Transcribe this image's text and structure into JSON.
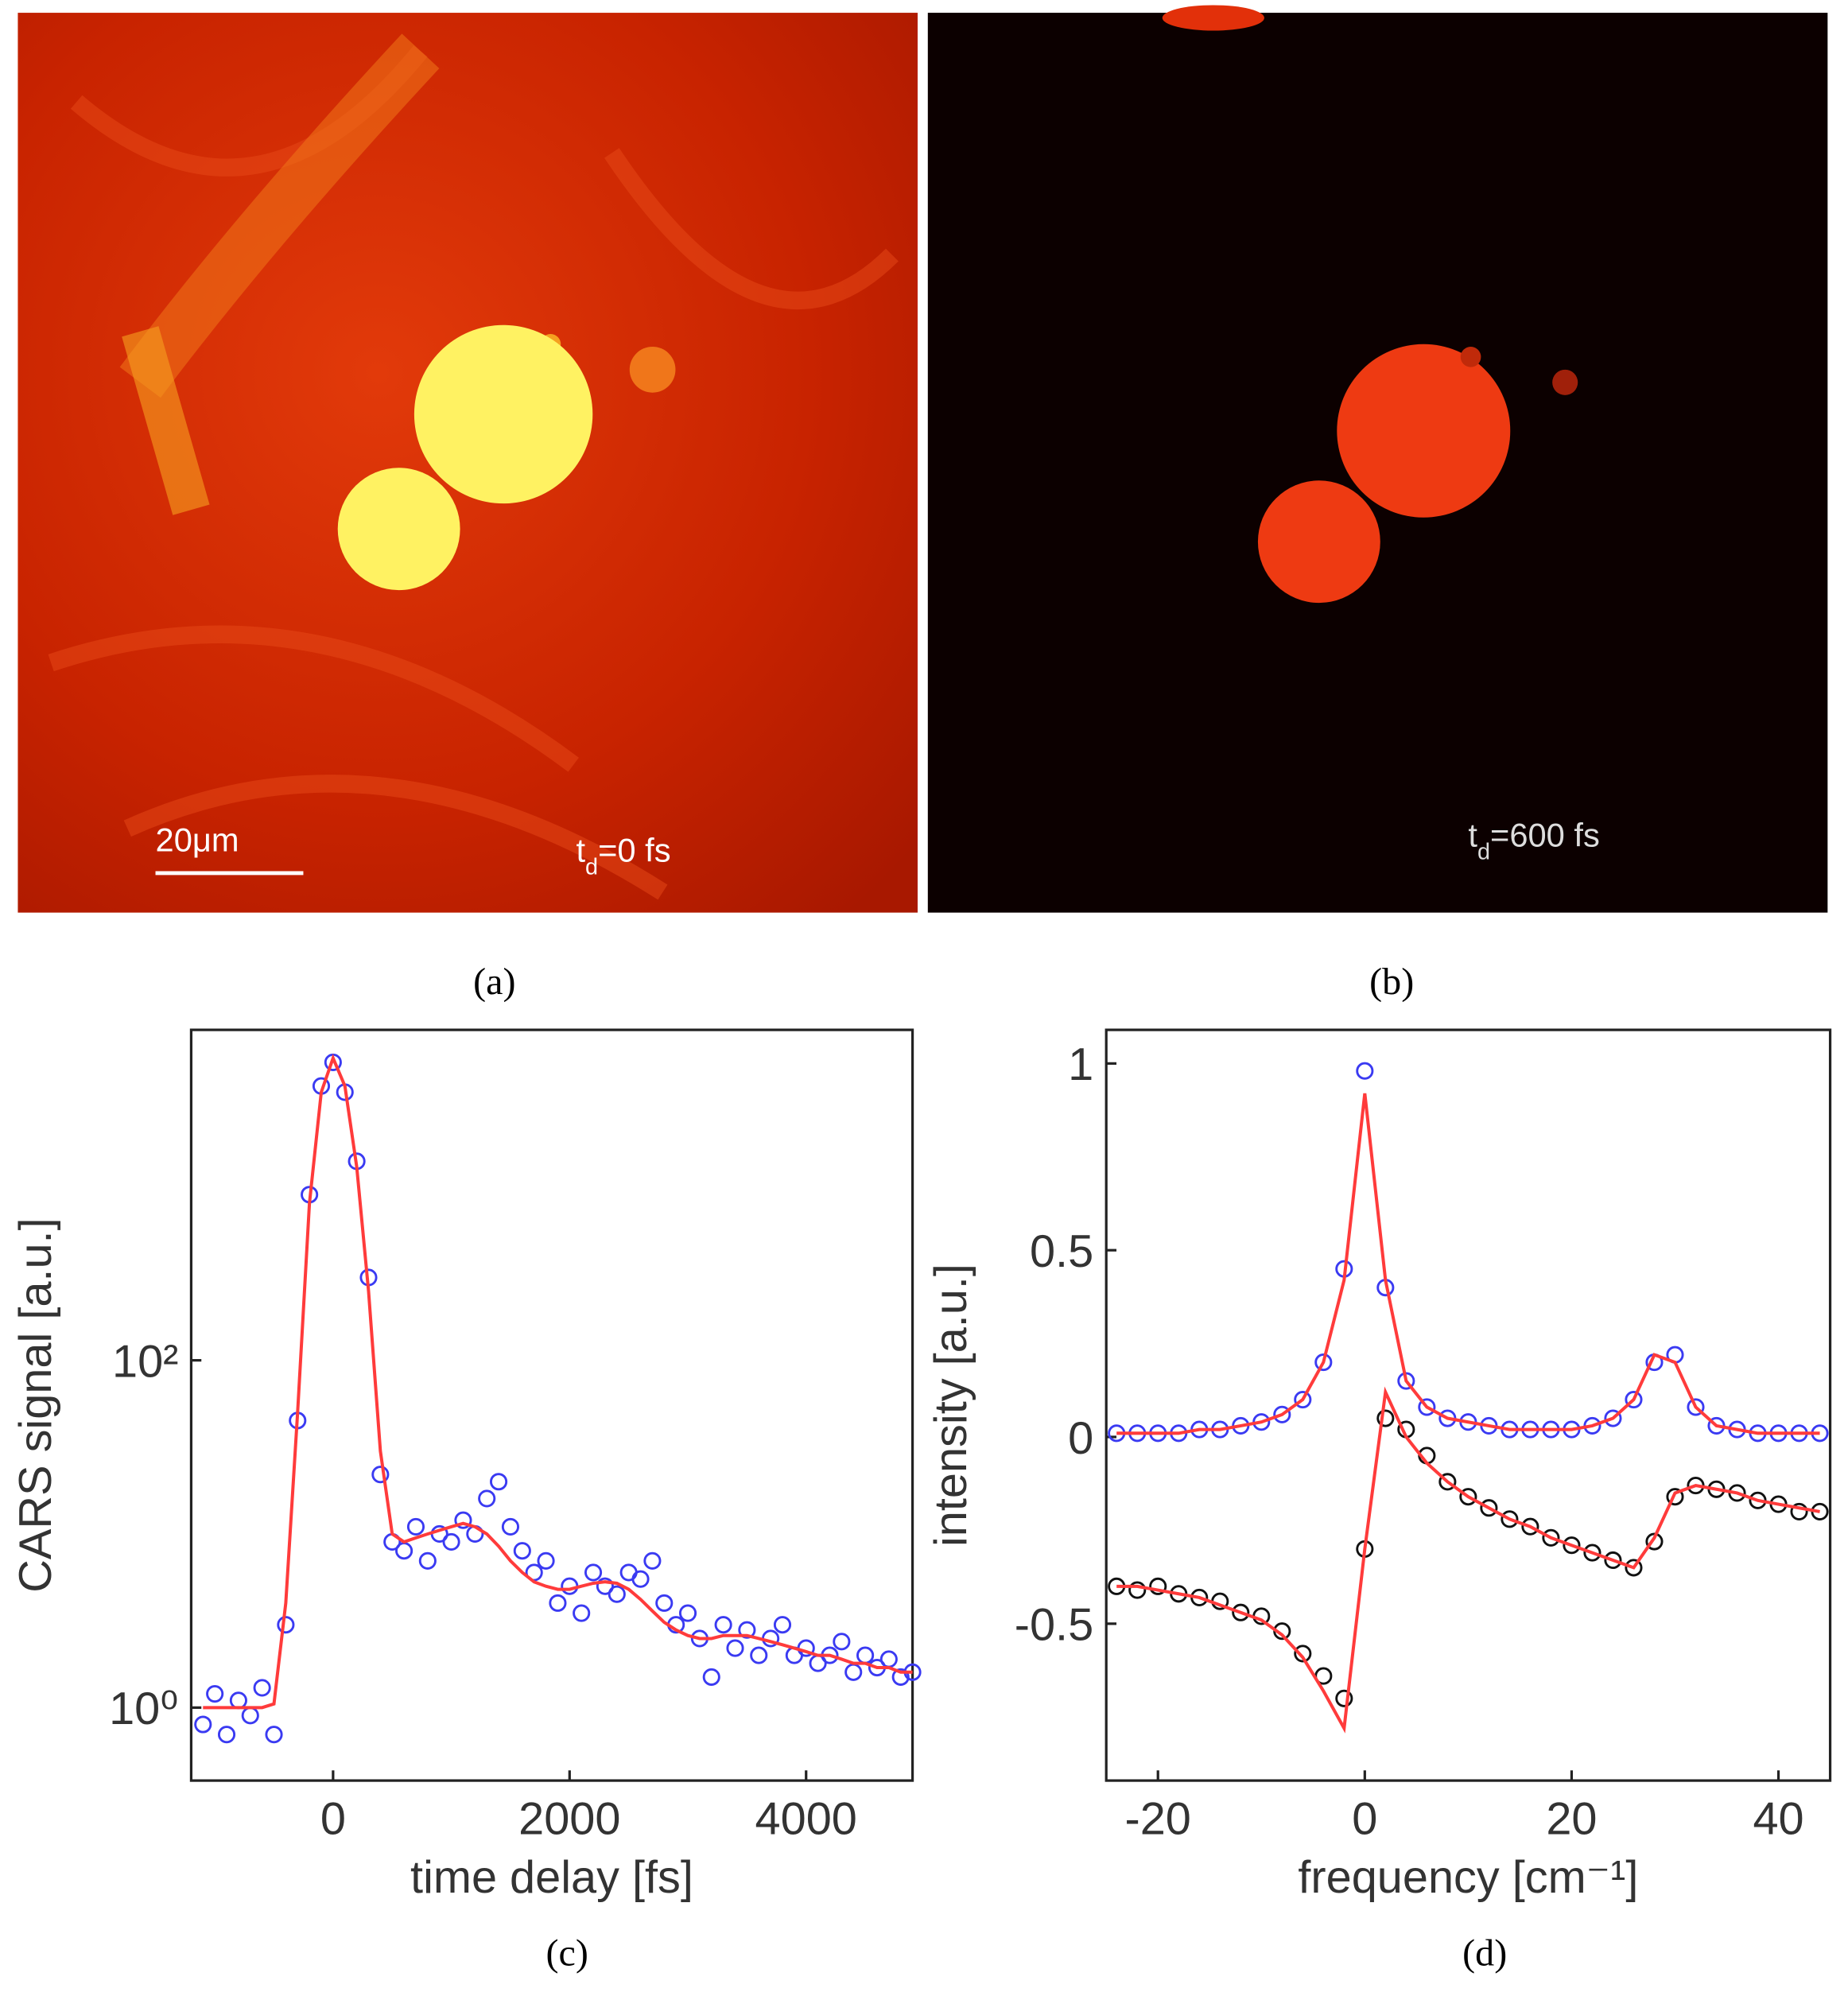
{
  "panels": [
    {
      "caption": "(a)",
      "scale_bar": "20μm",
      "delay": {
        "symbol": "t",
        "subscript": "d",
        "text": "=0 fs"
      }
    },
    {
      "caption": "(b)",
      "delay": {
        "symbol": "t",
        "subscript": "d",
        "text": "=600 fs"
      }
    }
  ],
  "chart_data": [
    {
      "type": "line",
      "caption": "(c)",
      "xlabel": "time delay [fs]",
      "ylabel": "CARS signal [a.u.]",
      "ylog": true,
      "xlim": [
        -1200,
        4900
      ],
      "ylim": [
        0.38,
        8000
      ],
      "xticks": [
        0,
        2000,
        4000
      ],
      "yticks": [
        {
          "value": 1,
          "label": "10⁰"
        },
        {
          "value": 100,
          "label": "10²"
        }
      ],
      "x": [
        -1100,
        -1000,
        -900,
        -800,
        -700,
        -600,
        -500,
        -400,
        -300,
        -200,
        -100,
        0,
        100,
        200,
        300,
        400,
        500,
        600,
        700,
        800,
        900,
        1000,
        1100,
        1200,
        1300,
        1400,
        1500,
        1600,
        1700,
        1800,
        1900,
        2000,
        2100,
        2200,
        2300,
        2400,
        2500,
        2600,
        2700,
        2800,
        2900,
        3000,
        3100,
        3200,
        3300,
        3400,
        3500,
        3600,
        3700,
        3800,
        3900,
        4000,
        4100,
        4200,
        4300,
        4400,
        4500,
        4600,
        4700,
        4800,
        4900
      ],
      "series": [
        {
          "mode": "markers",
          "color": "#3a3af2",
          "values": [
            0.8,
            1.2,
            0.7,
            1.1,
            0.9,
            1.3,
            0.7,
            3,
            45,
            900,
            3800,
            5200,
            3500,
            1400,
            300,
            22,
            9,
            8,
            11,
            7,
            10,
            9,
            12,
            10,
            16,
            20,
            11,
            8,
            6,
            7,
            4,
            5,
            3.5,
            6,
            5,
            4.5,
            6,
            5.5,
            7,
            4,
            3,
            3.5,
            2.5,
            1.5,
            3,
            2.2,
            2.8,
            2,
            2.5,
            3,
            2,
            2.2,
            1.8,
            2,
            2.4,
            1.6,
            2,
            1.7,
            1.9,
            1.5,
            1.6
          ]
        },
        {
          "mode": "line",
          "color": "#ff3b3b",
          "values": [
            1,
            1,
            1,
            1,
            1,
            1,
            1.05,
            4,
            50,
            800,
            3500,
            5500,
            3800,
            1300,
            250,
            30,
            10,
            9,
            9.5,
            10,
            10.5,
            11,
            11.5,
            11,
            10,
            8.5,
            7,
            6,
            5.3,
            5,
            4.8,
            4.8,
            5,
            5.2,
            5.3,
            5.2,
            4.8,
            4.2,
            3.6,
            3.1,
            2.8,
            2.6,
            2.5,
            2.5,
            2.6,
            2.6,
            2.6,
            2.5,
            2.4,
            2.3,
            2.2,
            2.1,
            2,
            2,
            1.9,
            1.8,
            1.8,
            1.7,
            1.7,
            1.6,
            1.6
          ]
        }
      ]
    },
    {
      "type": "line",
      "caption": "(d)",
      "xlabel": "frequency [cm⁻¹]",
      "ylabel": "intensity [a.u.]",
      "ylog": false,
      "xlim": [
        -25,
        45
      ],
      "ylim": [
        -0.92,
        1.09
      ],
      "xticks": [
        -20,
        0,
        20,
        40
      ],
      "yticks": [
        -0.5,
        0,
        0.5,
        1
      ],
      "x": [
        -24,
        -22,
        -20,
        -18,
        -16,
        -14,
        -12,
        -10,
        -8,
        -6,
        -4,
        -2,
        0,
        2,
        4,
        6,
        8,
        10,
        12,
        14,
        16,
        18,
        20,
        22,
        24,
        26,
        28,
        30,
        32,
        34,
        36,
        38,
        40,
        42,
        44
      ],
      "series": [
        {
          "mode": "markers",
          "color": "#3a3af2",
          "values": [
            0.01,
            0.01,
            0.01,
            0.01,
            0.02,
            0.02,
            0.03,
            0.04,
            0.06,
            0.1,
            0.2,
            0.45,
            0.98,
            0.4,
            0.15,
            0.08,
            0.05,
            0.04,
            0.03,
            0.02,
            0.02,
            0.02,
            0.02,
            0.03,
            0.05,
            0.1,
            0.2,
            0.22,
            0.08,
            0.03,
            0.02,
            0.01,
            0.01,
            0.01,
            0.01
          ]
        },
        {
          "mode": "markers",
          "color": "#111111",
          "values": [
            -0.4,
            -0.41,
            -0.4,
            -0.42,
            -0.43,
            -0.44,
            -0.47,
            -0.48,
            -0.52,
            -0.58,
            -0.64,
            -0.7,
            -0.3,
            0.05,
            0.02,
            -0.05,
            -0.12,
            -0.16,
            -0.19,
            -0.22,
            -0.24,
            -0.27,
            -0.29,
            -0.31,
            -0.33,
            -0.35,
            -0.28,
            -0.16,
            -0.13,
            -0.14,
            -0.15,
            -0.17,
            -0.18,
            -0.2,
            -0.2
          ]
        },
        {
          "mode": "line",
          "color": "#ff3b3b",
          "values": [
            0.01,
            0.01,
            0.01,
            0.01,
            0.02,
            0.02,
            0.03,
            0.04,
            0.06,
            0.1,
            0.2,
            0.42,
            0.92,
            0.42,
            0.15,
            0.08,
            0.05,
            0.04,
            0.03,
            0.02,
            0.02,
            0.02,
            0.02,
            0.03,
            0.05,
            0.1,
            0.22,
            0.2,
            0.08,
            0.03,
            0.02,
            0.01,
            0.01,
            0.01,
            0.01
          ]
        },
        {
          "mode": "line",
          "color": "#ff3b3b",
          "values": [
            -0.4,
            -0.4,
            -0.41,
            -0.42,
            -0.43,
            -0.45,
            -0.47,
            -0.49,
            -0.53,
            -0.59,
            -0.68,
            -0.78,
            -0.3,
            0.12,
            0,
            -0.07,
            -0.12,
            -0.16,
            -0.19,
            -0.22,
            -0.24,
            -0.27,
            -0.29,
            -0.31,
            -0.33,
            -0.35,
            -0.27,
            -0.15,
            -0.13,
            -0.14,
            -0.15,
            -0.17,
            -0.18,
            -0.19,
            -0.2
          ]
        }
      ]
    }
  ]
}
